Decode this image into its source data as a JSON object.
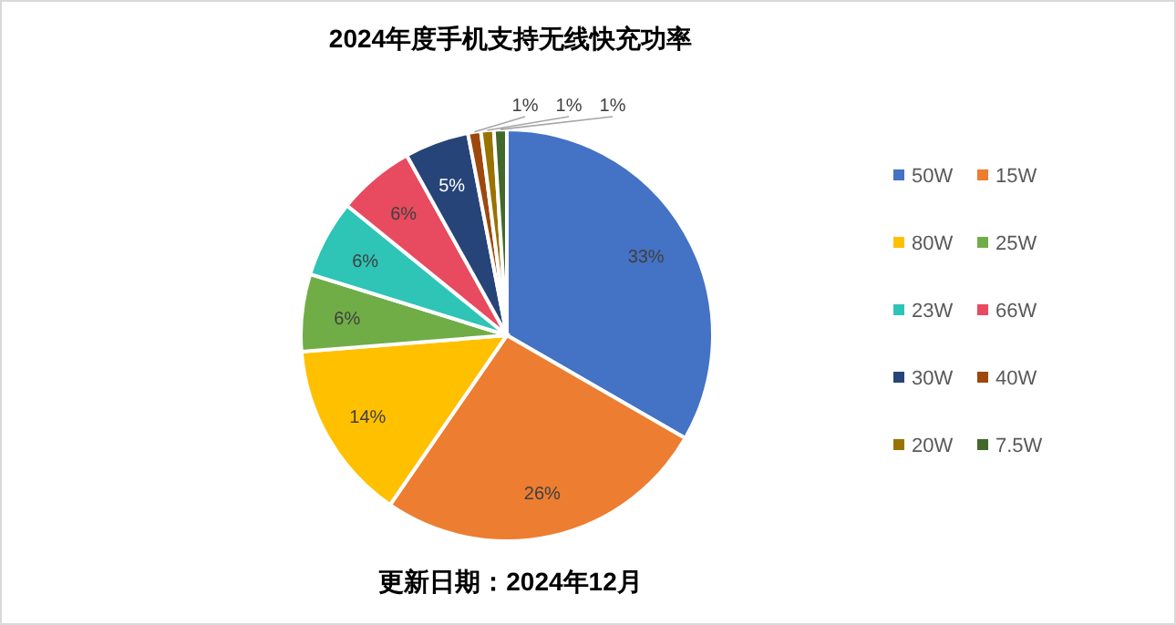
{
  "chart_data": {
    "type": "pie",
    "title": "2024年度手机支持无线快充功率",
    "categories": [
      "50W",
      "15W",
      "80W",
      "25W",
      "23W",
      "66W",
      "30W",
      "40W",
      "20W",
      "7.5W"
    ],
    "values": [
      33,
      26,
      14,
      6,
      6,
      6,
      5,
      1,
      1,
      1
    ],
    "colors": [
      "#4472c4",
      "#ed7d31",
      "#ffc000",
      "#70ad47",
      "#2ec4b6",
      "#e84a5f",
      "#264478",
      "#9e480e",
      "#997300",
      "#43682b"
    ],
    "value_labels": [
      "33%",
      "26%",
      "14%",
      "6%",
      "6%",
      "6%",
      "5%",
      "1%",
      "1%",
      "1%"
    ],
    "legend": "right",
    "annotations": [
      "更新日期：2024年12月"
    ]
  }
}
